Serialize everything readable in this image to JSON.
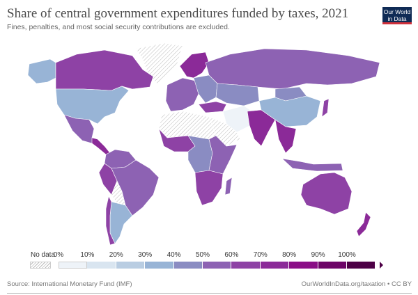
{
  "header": {
    "title": "Share of central government expenditures funded by taxes, 2021",
    "subtitle": "Fines, penalties, and most social security contributions are excluded.",
    "logo_text": "Our World in Data"
  },
  "legend": {
    "no_data_label": "No data",
    "ticks": [
      "0%",
      "10%",
      "20%",
      "30%",
      "40%",
      "50%",
      "60%",
      "70%",
      "80%",
      "90%",
      "100%"
    ],
    "colors": [
      "#eef3f8",
      "#d9e5f0",
      "#b9cde2",
      "#98b4d6",
      "#8a8cc2",
      "#8d62b3",
      "#8e42a5",
      "#8b2a98",
      "#8a0e86",
      "#6d0467",
      "#4d0046"
    ]
  },
  "regions": [
    {
      "name": "canada",
      "value": 65
    },
    {
      "name": "alaska",
      "value": 35
    },
    {
      "name": "usa",
      "value": 35
    },
    {
      "name": "mexico",
      "value": 55
    },
    {
      "name": "central-america",
      "value": 70
    },
    {
      "name": "colombia-venezuela",
      "value": 55
    },
    {
      "name": "peru",
      "value": 62
    },
    {
      "name": "brazil",
      "value": 55
    },
    {
      "name": "bolivia",
      "value": null
    },
    {
      "name": "argentina",
      "value": 33
    },
    {
      "name": "chile",
      "value": 65
    },
    {
      "name": "greenland",
      "value": null
    },
    {
      "name": "scandinavia",
      "value": 75
    },
    {
      "name": "western-europe",
      "value": 55
    },
    {
      "name": "eastern-europe",
      "value": 45
    },
    {
      "name": "russia",
      "value": 55
    },
    {
      "name": "kazakhstan",
      "value": 45
    },
    {
      "name": "middle-east",
      "value": 8
    },
    {
      "name": "arabia",
      "value": null
    },
    {
      "name": "turkey",
      "value": 60
    },
    {
      "name": "north-africa",
      "value": null
    },
    {
      "name": "west-africa",
      "value": 62
    },
    {
      "name": "central-africa",
      "value": 45
    },
    {
      "name": "east-africa",
      "value": 58
    },
    {
      "name": "southern-africa",
      "value": 68
    },
    {
      "name": "madagascar",
      "value": 55
    },
    {
      "name": "india",
      "value": 78
    },
    {
      "name": "china",
      "value": 38
    },
    {
      "name": "mongolia",
      "value": 45
    },
    {
      "name": "southeast-asia",
      "value": 72
    },
    {
      "name": "indonesia",
      "value": 55
    },
    {
      "name": "japan",
      "value": 60
    },
    {
      "name": "australia",
      "value": 62
    },
    {
      "name": "new-zealand",
      "value": 72
    }
  ],
  "footer": {
    "source": "Source: International Monetary Fund (IMF)",
    "url": "OurWorldInData.org/taxation • CC BY"
  }
}
